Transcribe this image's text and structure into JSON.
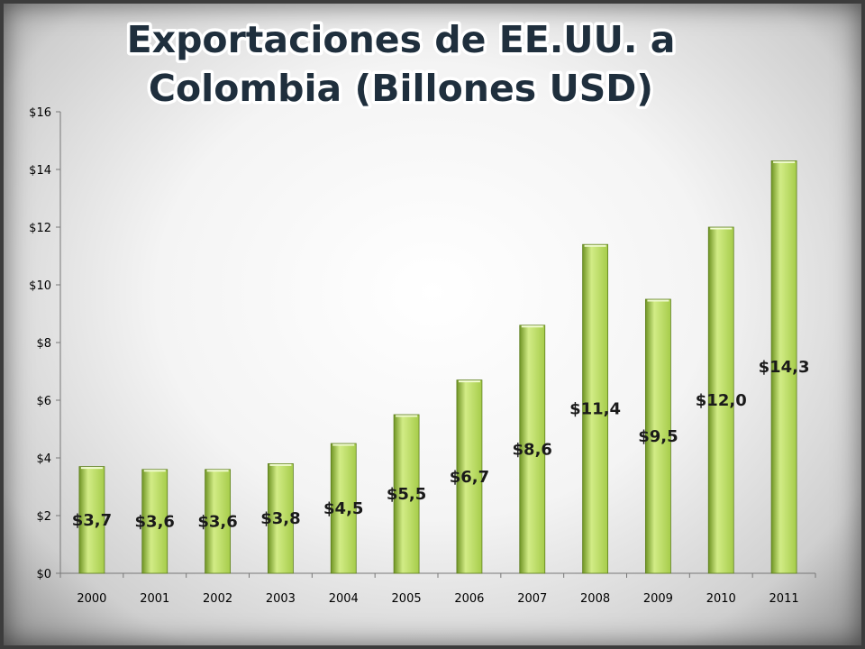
{
  "chart_data": {
    "type": "bar",
    "title": "Exportaciones de EE.UU. a Colombia  (Billones USD)",
    "title_lines": [
      "Exportaciones de EE.UU. a",
      "Colombia  (Billones USD)"
    ],
    "categories": [
      "2000",
      "2001",
      "2002",
      "2003",
      "2004",
      "2005",
      "2006",
      "2007",
      "2008",
      "2009",
      "2010",
      "2011"
    ],
    "values": [
      3.7,
      3.6,
      3.6,
      3.8,
      4.5,
      5.5,
      6.7,
      8.6,
      11.4,
      9.5,
      12.0,
      14.3
    ],
    "data_labels": [
      "$3,7",
      "$3,6",
      "$3,6",
      "$3,8",
      "$4,5",
      "$5,5",
      "$6,7",
      "$8,6",
      "$11,4",
      "$9,5",
      "$12,0",
      "$14,3"
    ],
    "yticks": [
      0,
      2,
      4,
      6,
      8,
      10,
      12,
      14,
      16
    ],
    "ytick_labels": [
      "$0",
      "$2",
      "$4",
      "$6",
      "$8",
      "$10",
      "$12",
      "$14",
      "$16"
    ],
    "ylim": [
      0,
      16
    ],
    "xlabel": "",
    "ylabel": "",
    "grid": false,
    "legend": "none",
    "bar_color": "#a6cc4a",
    "bar_highlight": "#d2ec86",
    "bar_shadow": "#6f9424"
  }
}
